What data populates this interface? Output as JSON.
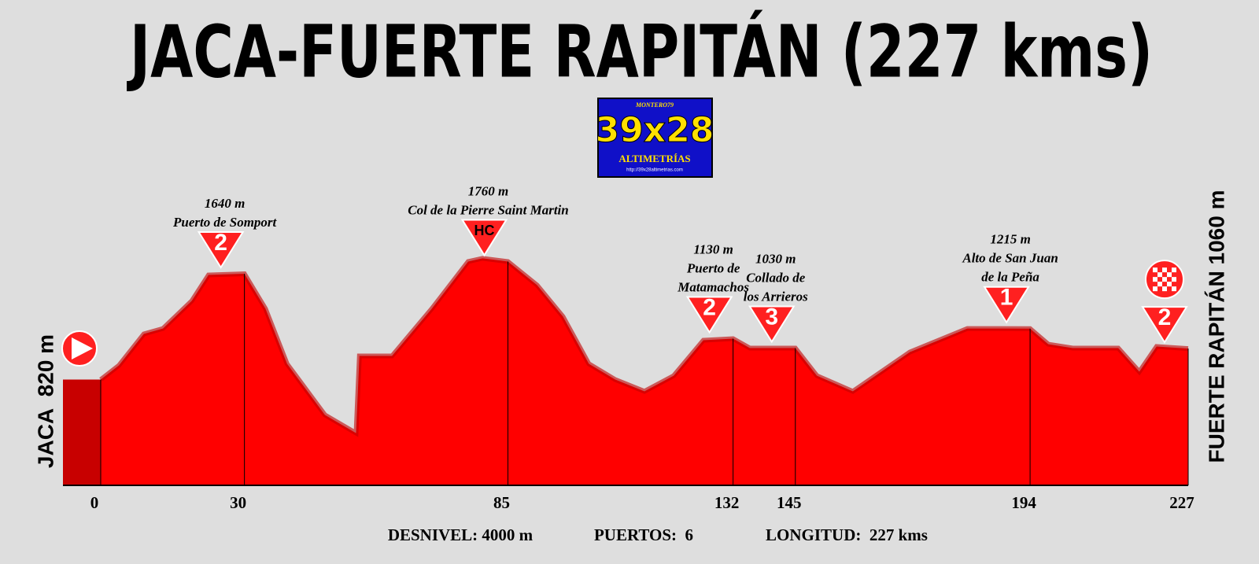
{
  "chart_data": {
    "type": "area",
    "title": "JACA-FUERTE RAPITÁN (227 kms)",
    "start_label": "JACA  820 m",
    "finish_label": "FUERTE RAPITÁN 1060 m",
    "logo": {
      "author": "MONTERO79",
      "brand": "39x28",
      "subtitle": "ALTIMETRÍAS",
      "url": "http://39x28altimetrias.com"
    },
    "x": [
      0,
      3.8,
      9,
      13,
      19,
      22.5,
      30,
      34.4,
      38.9,
      46.8,
      53.3,
      54,
      60.8,
      69.1,
      76.7,
      79.7,
      85,
      91.1,
      96.5,
      101.9,
      107.4,
      113.5,
      119.6,
      125.8,
      132,
      135.5,
      139.1,
      145,
      149.5,
      157,
      168.9,
      180.9,
      194,
      197.8,
      202.9,
      212.4,
      216.8,
      220.4,
      227
    ],
    "values": [
      820,
      930,
      1174,
      1216,
      1430,
      1631,
      1640,
      1369,
      942,
      546,
      405,
      1003,
      1003,
      1369,
      1735,
      1760,
      1735,
      1552,
      1308,
      942,
      820,
      729,
      850,
      1125,
      1137,
      1064,
      1064,
      1064,
      850,
      729,
      1033,
      1216,
      1215,
      1094,
      1064,
      1064,
      881,
      1076,
      1060
    ],
    "color": "#ff0000",
    "xlim": [
      0,
      227
    ],
    "xticks": [
      0,
      30,
      85,
      132,
      145,
      194,
      227
    ],
    "ylim": [
      0,
      2000
    ],
    "climbs": [
      {
        "km": 30,
        "elevation": "1640 m",
        "name": [
          "Puerto de Somport"
        ],
        "category": "2"
      },
      {
        "km": 85,
        "elevation": "1760 m",
        "name": [
          "Col de la Pierre Saint Martin"
        ],
        "category": "HC"
      },
      {
        "km": 132,
        "elevation": "1130 m",
        "name": [
          "Puerto de",
          "Matamachos"
        ],
        "category": "2"
      },
      {
        "km": 145,
        "elevation": "1030 m",
        "name": [
          "Collado de",
          "los Arrieros"
        ],
        "category": "3"
      },
      {
        "km": 194,
        "elevation": "1215 m",
        "name": [
          "Alto de San Juan",
          "de la Peña"
        ],
        "category": "1"
      },
      {
        "km": 227,
        "category": "2"
      }
    ],
    "footer": [
      "DESNIVEL: 4000 m",
      "PUERTOS:  6",
      "LONGITUD:  227 kms"
    ]
  }
}
